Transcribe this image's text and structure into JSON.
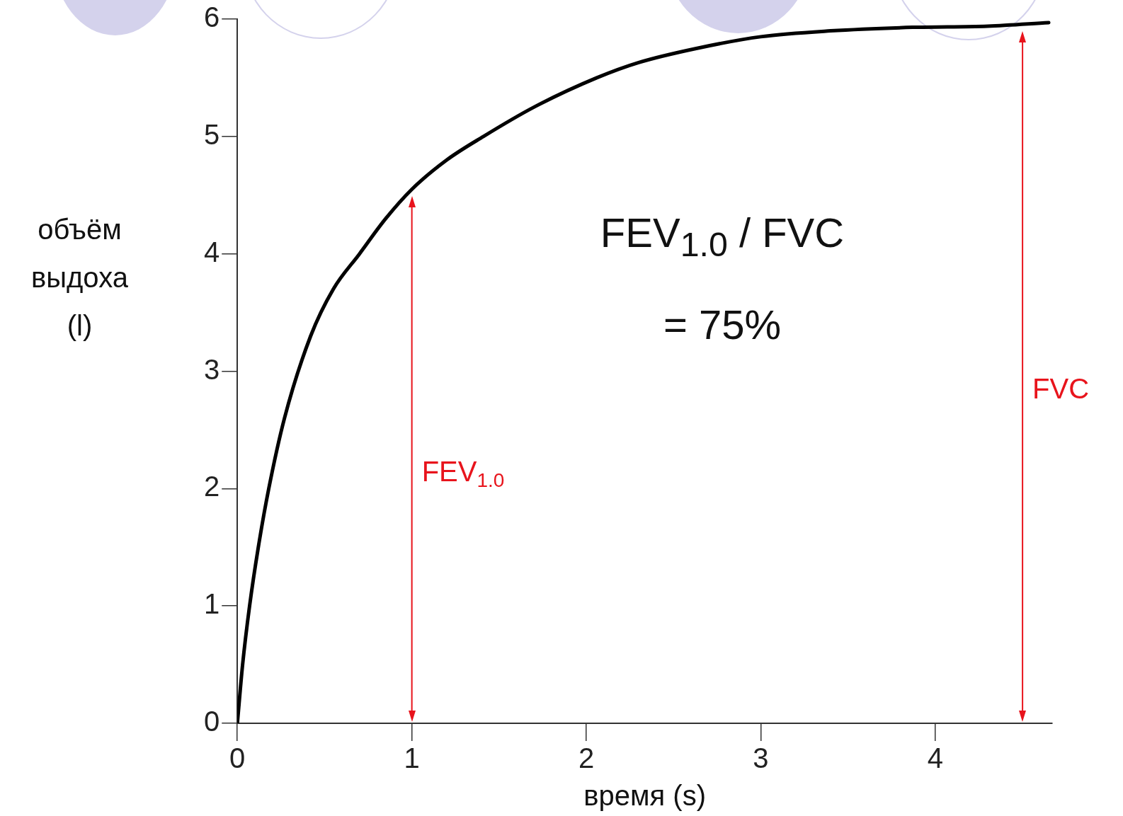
{
  "chart_data": {
    "type": "line",
    "xlabel": "время (s)",
    "ylabel": "объём выдоха (l)",
    "annotations": [
      "FEV$_{1.0}$ / FVC",
      "= 75%"
    ],
    "ref_lines": [
      {
        "axis": "x",
        "value": 1,
        "label": "FEV$_{1.0}$",
        "color": "#e8141c"
      },
      {
        "axis": "x",
        "value": 4.5,
        "label": "FVC",
        "color": "#e8141c"
      }
    ],
    "xlim": [
      0,
      4.67
    ],
    "xticks": [
      0,
      1,
      2,
      3,
      4
    ],
    "ylim": [
      0,
      6
    ],
    "yticks": [
      0,
      1,
      2,
      3,
      4,
      5,
      6
    ],
    "grid": false,
    "legend": false,
    "marker": "none",
    "line_style": "solid",
    "series": [
      {
        "color": "#000000",
        "x": [
          0,
          0.03,
          0.07,
          0.12,
          0.18,
          0.27,
          0.42,
          0.55,
          0.7,
          0.85,
          1.0,
          1.2,
          1.41,
          1.7,
          2.06,
          2.3,
          2.63,
          3.0,
          3.4,
          3.87,
          4.3,
          4.65
        ],
        "values": [
          0,
          0.5,
          1,
          1.5,
          2,
          2.6,
          3.3,
          3.7,
          4.0,
          4.3,
          4.55,
          4.8,
          5.0,
          5.25,
          5.5,
          5.63,
          5.75,
          5.85,
          5.9,
          5.93,
          5.94,
          5.97
        ]
      }
    ]
  }
}
